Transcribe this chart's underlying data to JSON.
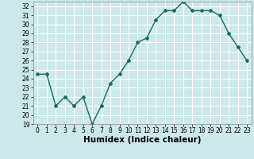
{
  "x": [
    0,
    1,
    2,
    3,
    4,
    5,
    6,
    7,
    8,
    9,
    10,
    11,
    12,
    13,
    14,
    15,
    16,
    17,
    18,
    19,
    20,
    21,
    22,
    23
  ],
  "y": [
    24.5,
    24.5,
    21.0,
    22.0,
    21.0,
    22.0,
    19.0,
    21.0,
    23.5,
    24.5,
    26.0,
    28.0,
    28.5,
    30.5,
    31.5,
    31.5,
    32.5,
    31.5,
    31.5,
    31.5,
    31.0,
    29.0,
    27.5,
    26.0
  ],
  "xlabel": "Humidex (Indice chaleur)",
  "xlim": [
    -0.5,
    23.5
  ],
  "ylim": [
    19,
    32.5
  ],
  "yticks": [
    19,
    20,
    21,
    22,
    23,
    24,
    25,
    26,
    27,
    28,
    29,
    30,
    31,
    32
  ],
  "xticks": [
    0,
    1,
    2,
    3,
    4,
    5,
    6,
    7,
    8,
    9,
    10,
    11,
    12,
    13,
    14,
    15,
    16,
    17,
    18,
    19,
    20,
    21,
    22,
    23
  ],
  "line_color": "#1a6b5a",
  "marker": "D",
  "marker_size": 2,
  "bg_color": "#cce8e8",
  "grid_color": "#ffffff",
  "tick_fontsize": 5.5,
  "xlabel_fontsize": 7.5,
  "line_width": 1.0
}
